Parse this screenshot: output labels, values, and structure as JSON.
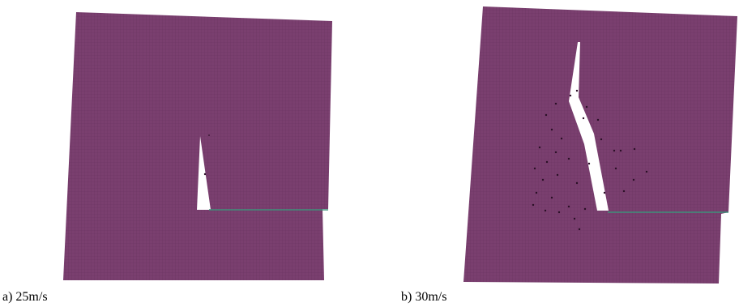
{
  "colors": {
    "mesh_fill": "#7a3f6f",
    "mesh_grid": "#6a3360",
    "crack": "#ffffff",
    "particles": "#2a0f26",
    "crack_tail": "#3f8f7a",
    "background": "#ffffff"
  },
  "panels": [
    {
      "id": "a",
      "caption": "a) 25m/s"
    },
    {
      "id": "b",
      "caption": "b) 30m/s"
    }
  ]
}
